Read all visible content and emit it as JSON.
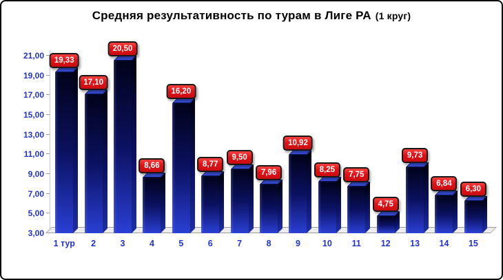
{
  "frame": {
    "background": "#ffffff",
    "border_color": "#000000"
  },
  "title": {
    "main": "Средняя результативность по турам в Лиге РА",
    "suffix": "(1 круг)"
  },
  "colors": {
    "title_text": "#000000",
    "axis_label": "#2233cc",
    "bar_gradient_top": "#01021a",
    "bar_gradient_mid": "#0b1160",
    "bar_gradient_bottom": "#2a3fd4",
    "bar_top_face": "#3b52e0",
    "value_label_bg": "#e01318",
    "value_label_border": "#181818",
    "value_label_text": "#ffffff",
    "floor": "#ededed"
  },
  "chart_data": {
    "type": "bar",
    "title": "Средняя результативность по турам в Лиге РА (1 круг)",
    "categories": [
      "1 тур",
      "2",
      "3",
      "4",
      "5",
      "6",
      "7",
      "8",
      "9",
      "10",
      "11",
      "12",
      "13",
      "14",
      "15"
    ],
    "values": [
      19.33,
      17.1,
      20.5,
      8.66,
      16.2,
      8.77,
      9.5,
      7.96,
      10.92,
      8.25,
      7.75,
      4.75,
      9.73,
      6.84,
      6.3
    ],
    "value_labels": [
      "19,33",
      "17,10",
      "20,50",
      "8,66",
      "16,20",
      "8,77",
      "9,50",
      "7,96",
      "10,92",
      "8,25",
      "7,75",
      "4,75",
      "9,73",
      "6,84",
      "6,30"
    ],
    "y_ticks": [
      21,
      19,
      17,
      15,
      13,
      11,
      9,
      7,
      5,
      3
    ],
    "y_tick_labels": [
      "21,00",
      "19,00",
      "17,00",
      "15,00",
      "13,00",
      "11,00",
      "9,00",
      "7,00",
      "5,00",
      "3,00"
    ],
    "ylim": [
      3,
      21
    ],
    "xlabel": "",
    "ylabel": "",
    "grid": false,
    "legend": false,
    "style": "3d-column",
    "decimal_separator": ","
  }
}
